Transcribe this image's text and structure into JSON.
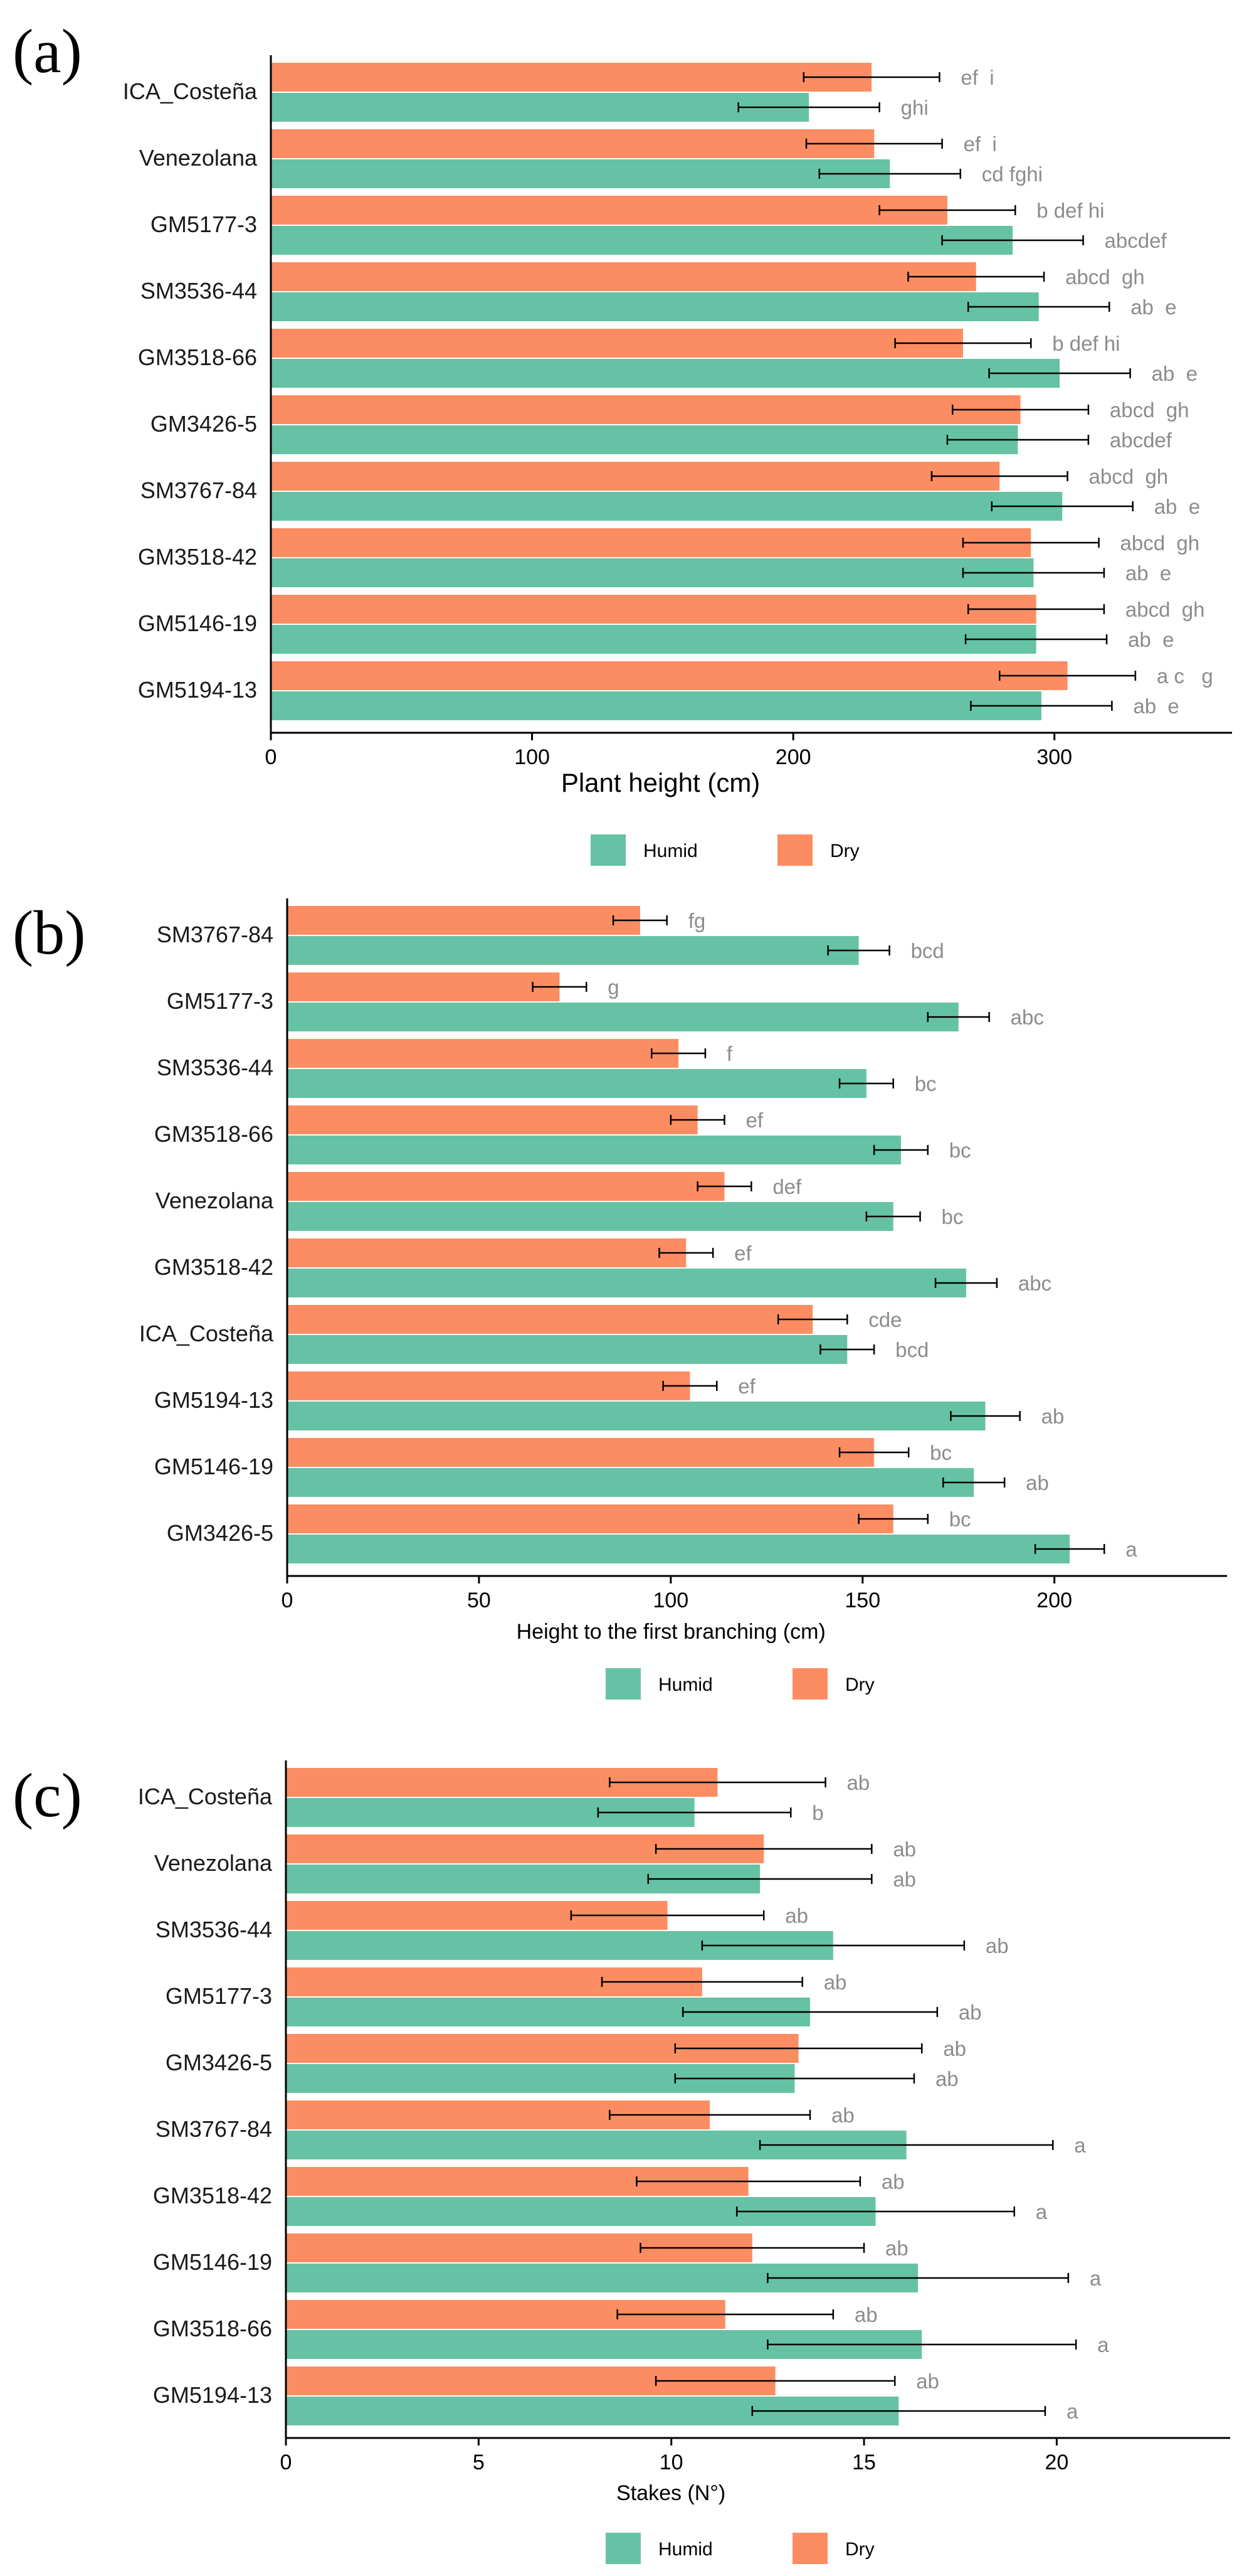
{
  "colors": {
    "humid": "#66C2A5",
    "dry": "#FC8D62",
    "letters": "#8c8c8c",
    "axis": "#000000"
  },
  "legend": {
    "humid": "Humid",
    "dry": "Dry"
  },
  "chart_data": [
    {
      "panel_label": "(a)",
      "type": "bar",
      "orientation": "horizontal",
      "xlabel": "Plant height (cm)",
      "xlim": [
        0,
        368
      ],
      "xticks": [
        0,
        100,
        200,
        300
      ],
      "categories": [
        "ICA_Costeña",
        "Venezolana",
        "GM5177-3",
        "SM3536-44",
        "GM3518-66",
        "GM3426-5",
        "SM3767-84",
        "GM3518-42",
        "GM5146-19",
        "GM5194-13"
      ],
      "series": [
        {
          "name": "Dry",
          "values": [
            230,
            231,
            259,
            270,
            265,
            287,
            279,
            291,
            293,
            305
          ],
          "errors": [
            26,
            26,
            26,
            26,
            26,
            26,
            26,
            26,
            26,
            26
          ],
          "letters": [
            "ef  i",
            "ef  i",
            "b def hi",
            "abcd  gh",
            "b def hi",
            "abcd  gh",
            "abcd  gh",
            "abcd  gh",
            "abcd  gh",
            "a c   g"
          ]
        },
        {
          "name": "Humid",
          "values": [
            206,
            237,
            284,
            294,
            302,
            286,
            303,
            292,
            293,
            295
          ],
          "errors": [
            27,
            27,
            27,
            27,
            27,
            27,
            27,
            27,
            27,
            27
          ],
          "letters": [
            "ghi",
            "cd fghi",
            "abcdef",
            "ab  e",
            "ab  e",
            "abcdef",
            "ab  e",
            "ab  e",
            "ab  e",
            "ab  e"
          ]
        }
      ]
    },
    {
      "panel_label": "(b)",
      "type": "bar",
      "orientation": "horizontal",
      "xlabel": "Height to the first branching (cm)",
      "xlim": [
        0,
        245
      ],
      "xticks": [
        0,
        50,
        100,
        150,
        200
      ],
      "categories": [
        "SM3767-84",
        "GM5177-3",
        "SM3536-44",
        "GM3518-66",
        "Venezolana",
        "GM3518-42",
        "ICA_Costeña",
        "GM5194-13",
        "GM5146-19",
        "GM3426-5"
      ],
      "series": [
        {
          "name": "Dry",
          "values": [
            92,
            71,
            102,
            107,
            114,
            104,
            137,
            105,
            153,
            158
          ],
          "errors": [
            7,
            7,
            7,
            7,
            7,
            7,
            9,
            7,
            9,
            9
          ],
          "letters": [
            "fg",
            "g",
            "f",
            "ef",
            "def",
            "ef",
            "cde",
            "ef",
            "bc",
            "bc"
          ]
        },
        {
          "name": "Humid",
          "values": [
            149,
            175,
            151,
            160,
            158,
            177,
            146,
            182,
            179,
            204
          ],
          "errors": [
            8,
            8,
            7,
            7,
            7,
            8,
            7,
            9,
            8,
            9
          ],
          "letters": [
            "bcd",
            "abc",
            "bc",
            "bc",
            "bc",
            "abc",
            "bcd",
            "ab",
            "ab",
            "a"
          ]
        }
      ]
    },
    {
      "panel_label": "(c)",
      "type": "bar",
      "orientation": "horizontal",
      "xlabel": "Stakes (N°)",
      "xlim": [
        0,
        24.5
      ],
      "xticks": [
        0,
        5,
        10,
        15,
        20
      ],
      "categories": [
        "ICA_Costeña",
        "Venezolana",
        "SM3536-44",
        "GM5177-3",
        "GM3426-5",
        "SM3767-84",
        "GM3518-42",
        "GM5146-19",
        "GM3518-66",
        "GM5194-13"
      ],
      "series": [
        {
          "name": "Dry",
          "values": [
            11.2,
            12.4,
            9.9,
            10.8,
            13.3,
            11.0,
            12.0,
            12.1,
            11.4,
            12.7
          ],
          "errors": [
            2.8,
            2.8,
            2.5,
            2.6,
            3.2,
            2.6,
            2.9,
            2.9,
            2.8,
            3.1
          ],
          "letters": [
            "ab",
            "ab",
            "ab",
            "ab",
            "ab",
            "ab",
            "ab",
            "ab",
            "ab",
            "ab"
          ]
        },
        {
          "name": "Humid",
          "values": [
            10.6,
            12.3,
            14.2,
            13.6,
            13.2,
            16.1,
            15.3,
            16.4,
            16.5,
            15.9
          ],
          "errors": [
            2.5,
            2.9,
            3.4,
            3.3,
            3.1,
            3.8,
            3.6,
            3.9,
            4.0,
            3.8
          ],
          "letters": [
            "b",
            "ab",
            "ab",
            "ab",
            "ab",
            "a",
            "a",
            "a",
            "a",
            "a"
          ]
        }
      ]
    }
  ]
}
